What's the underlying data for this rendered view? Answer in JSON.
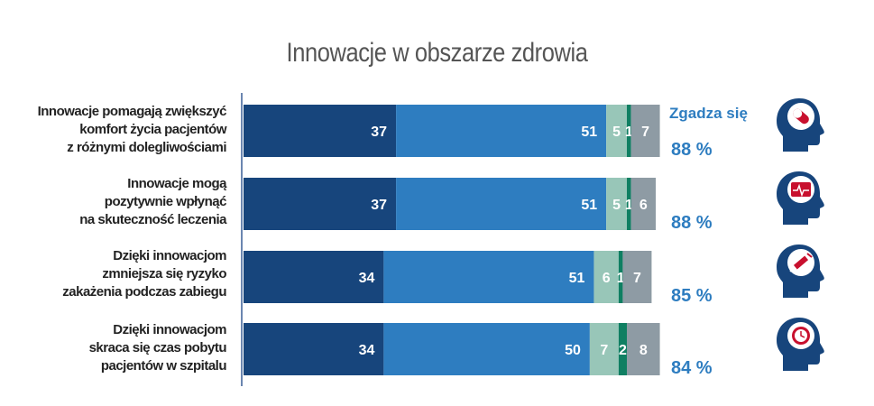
{
  "chart_data": {
    "type": "bar",
    "orientation": "horizontal",
    "stacked": true,
    "title": "Innowacje w obszarze zdrowia",
    "categories": [
      "Innowacje pomagają zwiększyć komfort życia pacjentów z różnymi dolegliwościami",
      "Innowacje mogą pozytywnie wpłynąć na skuteczność leczenia",
      "Dzięki innowacjom zmniejsza się ryzyko zakażenia podczas zabiegu",
      "Dzięki innowacjom skraca się czas pobytu pacjentów w szpitalu"
    ],
    "category_lines": [
      [
        "Innowacje pomagają zwiększyć",
        "komfort życia pacjentów",
        "z różnymi dolegliwościami"
      ],
      [
        "Innowacje mogą",
        "pozytywnie wpłynąć",
        "na skuteczność leczenia"
      ],
      [
        "Dzięki innowacjom",
        "zmniejsza się ryzyko",
        "zakażenia podczas zabiegu"
      ],
      [
        "Dzięki innowacjom",
        "skraca się czas pobytu",
        "pacjentów w szpitalu"
      ]
    ],
    "series": [
      {
        "name": "segment-1",
        "color": "#17457c",
        "values": [
          37,
          37,
          34,
          34
        ]
      },
      {
        "name": "segment-2",
        "color": "#2e7dc0",
        "values": [
          51,
          51,
          51,
          50
        ]
      },
      {
        "name": "segment-3",
        "color": "#98c6b8",
        "values": [
          5,
          5,
          6,
          7
        ]
      },
      {
        "name": "segment-4",
        "color": "#0f7f62",
        "values": [
          1,
          1,
          1,
          2
        ]
      },
      {
        "name": "segment-5",
        "color": "#8e9ba4",
        "values": [
          7,
          6,
          7,
          8
        ]
      }
    ],
    "xlim": [
      0,
      100
    ],
    "legend": "none",
    "agree_label": "Zgadza się",
    "agree_totals": [
      "88 %",
      "88 %",
      "85 %",
      "84 %"
    ],
    "icons": [
      "pill-icon",
      "heart-monitor-icon",
      "syringe-icon",
      "clock-icon"
    ]
  }
}
